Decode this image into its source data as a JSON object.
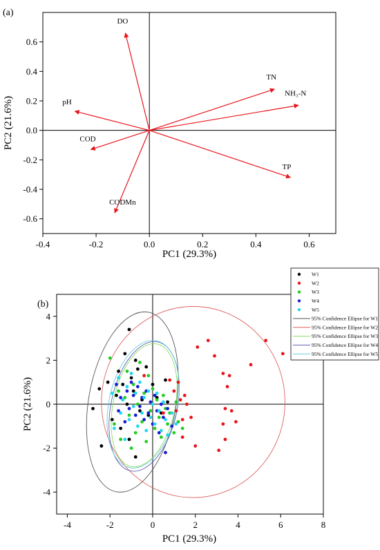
{
  "colors": {
    "arrow": "#e8141b",
    "w1": "#000000",
    "w2": "#e8141b",
    "w3": "#22cc22",
    "w4": "#1a1ad6",
    "w5": "#22d6ee",
    "ellipse_w1": "#555555",
    "ellipse_w2": "#e06060",
    "ellipse_w3": "#88dd66",
    "ellipse_w4": "#6060b0",
    "ellipse_w5": "#66ccdd"
  },
  "chart_data": [
    {
      "type": "scatter",
      "subtype": "biplot-loadings",
      "panel_label": "(a)",
      "xlabel": "PC1 (29.3%)",
      "ylabel": "PC2 (21.6%)",
      "xlim": [
        -0.4,
        0.7
      ],
      "ylim": [
        -0.7,
        0.8
      ],
      "xticks": [
        "-0.4",
        "-0.2",
        "0.0",
        "0.2",
        "0.4",
        "0.6"
      ],
      "yticks": [
        "-0.6",
        "-0.4",
        "-0.2",
        "0.0",
        "0.2",
        "0.4",
        "0.6"
      ],
      "xtick_values": [
        -0.4,
        -0.2,
        0.0,
        0.2,
        0.4,
        0.6
      ],
      "ytick_values": [
        -0.6,
        -0.4,
        -0.2,
        0.0,
        0.2,
        0.4,
        0.6
      ],
      "vectors": [
        {
          "label": "DO",
          "x": -0.09,
          "y": 0.66
        },
        {
          "label": "pH",
          "x": -0.28,
          "y": 0.13
        },
        {
          "label": "COD",
          "x": -0.22,
          "y": -0.13
        },
        {
          "label": "CODMn",
          "x": -0.13,
          "y": -0.56
        },
        {
          "label": "TN",
          "x": 0.47,
          "y": 0.28
        },
        {
          "label": "NH₃-N",
          "x": 0.56,
          "y": 0.17
        },
        {
          "label": "TP",
          "x": 0.53,
          "y": -0.32
        }
      ]
    },
    {
      "type": "scatter",
      "panel_label": "(b)",
      "xlabel": "PC1 (29.3%)",
      "ylabel": "PC2 (21.6%)",
      "xlim": [
        -4.5,
        8
      ],
      "ylim": [
        -5,
        5
      ],
      "xticks": [
        "-4",
        "-2",
        "0",
        "2",
        "4",
        "6",
        "8"
      ],
      "yticks": [
        "-4",
        "-2",
        "0",
        "2",
        "4"
      ],
      "xtick_values": [
        -4,
        -2,
        0,
        2,
        4,
        6,
        8
      ],
      "ytick_values": [
        -4,
        -2,
        0,
        2,
        4
      ],
      "legend_position": "top-right",
      "series": [
        {
          "name": "W1",
          "color_key": "w1",
          "points": [
            [
              -2.8,
              -0.2
            ],
            [
              -2.5,
              0.7
            ],
            [
              -2.4,
              -1.9
            ],
            [
              -2.1,
              1.0
            ],
            [
              -1.9,
              -0.7
            ],
            [
              -1.7,
              0.4
            ],
            [
              -1.6,
              1.5
            ],
            [
              -1.5,
              -1.1
            ],
            [
              -1.4,
              0.9
            ],
            [
              -1.3,
              2.3
            ],
            [
              -1.2,
              0.0
            ],
            [
              -1.1,
              3.4
            ],
            [
              -1.1,
              -1.6
            ],
            [
              -1.0,
              1.2
            ],
            [
              -0.9,
              0.6
            ],
            [
              -0.8,
              -2.4
            ],
            [
              -0.8,
              2.0
            ],
            [
              -0.7,
              1.6
            ],
            [
              -0.6,
              -0.3
            ],
            [
              -0.5,
              0.2
            ],
            [
              -0.3,
              1.7
            ],
            [
              -0.2,
              -0.5
            ],
            [
              0.0,
              0.9
            ],
            [
              0.2,
              0.3
            ],
            [
              0.4,
              -0.4
            ],
            [
              0.6,
              1.1
            ],
            [
              0.7,
              0.1
            ]
          ]
        },
        {
          "name": "W2",
          "color_key": "w2",
          "points": [
            [
              -0.4,
              1.3
            ],
            [
              0.5,
              -0.4
            ],
            [
              0.8,
              1.1
            ],
            [
              1.0,
              0.6
            ],
            [
              1.1,
              -0.3
            ],
            [
              1.2,
              1.0
            ],
            [
              1.3,
              0.2
            ],
            [
              1.4,
              -0.7
            ],
            [
              1.4,
              -1.5
            ],
            [
              1.5,
              0.4
            ],
            [
              1.6,
              0.0
            ],
            [
              1.8,
              -0.6
            ],
            [
              2.0,
              -1.9
            ],
            [
              2.1,
              2.6
            ],
            [
              2.6,
              2.9
            ],
            [
              2.9,
              2.2
            ],
            [
              3.1,
              -2.1
            ],
            [
              3.3,
              1.4
            ],
            [
              3.3,
              -0.9
            ],
            [
              3.4,
              -0.2
            ],
            [
              3.4,
              -1.6
            ],
            [
              3.5,
              0.8
            ],
            [
              3.6,
              1.3
            ],
            [
              3.7,
              -0.3
            ],
            [
              3.9,
              -0.8
            ],
            [
              4.6,
              1.8
            ],
            [
              5.3,
              2.9
            ],
            [
              6.1,
              2.3
            ]
          ]
        },
        {
          "name": "W3",
          "color_key": "w3",
          "points": [
            [
              -2.0,
              2.1
            ],
            [
              -1.8,
              -0.9
            ],
            [
              -1.6,
              0.6
            ],
            [
              -1.5,
              -1.6
            ],
            [
              -1.3,
              0.3
            ],
            [
              -1.2,
              1.5
            ],
            [
              -1.1,
              -0.5
            ],
            [
              -1.0,
              -2.0
            ],
            [
              -0.9,
              0.9
            ],
            [
              -0.8,
              -1.3
            ],
            [
              -0.7,
              0.0
            ],
            [
              -0.6,
              1.9
            ],
            [
              -0.5,
              -0.8
            ],
            [
              -0.4,
              0.5
            ],
            [
              -0.3,
              -1.7
            ],
            [
              -0.2,
              1.3
            ],
            [
              -0.1,
              -0.3
            ],
            [
              0.0,
              0.7
            ],
            [
              0.1,
              -1.1
            ],
            [
              0.2,
              0.2
            ],
            [
              0.3,
              -0.6
            ],
            [
              0.4,
              -1.5
            ],
            [
              0.5,
              0.4
            ],
            [
              0.6,
              -0.2
            ],
            [
              0.7,
              -0.9
            ],
            [
              0.8,
              -0.4
            ],
            [
              1.0,
              -1.3
            ],
            [
              1.1,
              0.1
            ],
            [
              1.2,
              -0.8
            ],
            [
              1.4,
              -1.1
            ]
          ]
        },
        {
          "name": "W4",
          "color_key": "w4",
          "points": [
            [
              -1.7,
              0.9
            ],
            [
              -1.6,
              -0.3
            ],
            [
              -1.5,
              0.3
            ],
            [
              -1.3,
              -0.8
            ],
            [
              -1.2,
              0.6
            ],
            [
              -1.1,
              -0.2
            ],
            [
              -1.0,
              1.0
            ],
            [
              -0.9,
              0.4
            ],
            [
              -0.8,
              -0.5
            ],
            [
              -0.7,
              0.8
            ],
            [
              -0.6,
              -0.1
            ],
            [
              -0.5,
              0.3
            ],
            [
              -0.4,
              -0.7
            ],
            [
              -0.3,
              0.6
            ],
            [
              -0.2,
              -0.4
            ],
            [
              -0.1,
              0.1
            ],
            [
              0.0,
              -0.9
            ],
            [
              0.1,
              0.4
            ],
            [
              0.2,
              -0.3
            ],
            [
              0.3,
              -1.3
            ],
            [
              0.4,
              0.0
            ],
            [
              0.5,
              -0.6
            ],
            [
              0.6,
              -2.2
            ],
            [
              0.7,
              -0.2
            ],
            [
              0.9,
              -1.0
            ]
          ]
        },
        {
          "name": "W5",
          "color_key": "w5",
          "points": [
            [
              -1.9,
              0.5
            ],
            [
              -1.8,
              -1.1
            ],
            [
              -1.6,
              1.2
            ],
            [
              -1.5,
              -0.4
            ],
            [
              -1.4,
              0.2
            ],
            [
              -1.3,
              -1.6
            ],
            [
              -1.2,
              0.8
            ],
            [
              -1.1,
              -0.7
            ],
            [
              -1.0,
              1.4
            ],
            [
              -0.9,
              -0.1
            ],
            [
              -0.8,
              0.5
            ],
            [
              -0.7,
              -1.0
            ],
            [
              -0.6,
              1.0
            ],
            [
              -0.5,
              -0.4
            ],
            [
              -0.4,
              0.3
            ],
            [
              -0.3,
              -1.2
            ],
            [
              -0.2,
              0.6
            ],
            [
              -0.1,
              -0.6
            ],
            [
              0.0,
              0.0
            ],
            [
              0.1,
              -0.9
            ],
            [
              0.2,
              0.5
            ],
            [
              0.3,
              -0.3
            ],
            [
              0.4,
              -1.2
            ],
            [
              0.5,
              0.1
            ],
            [
              0.6,
              -0.7
            ],
            [
              0.7,
              -1.4
            ],
            [
              0.9,
              -0.4
            ],
            [
              1.1,
              -0.9
            ]
          ]
        }
      ],
      "ellipses": [
        {
          "name": "95% Confidence Ellipse for W1",
          "color_key": "ellipse_w1",
          "cx": -0.95,
          "cy": 0.1,
          "rx": 2.05,
          "ry": 4.15,
          "angle": 10
        },
        {
          "name": "95% Confidence Ellipse for W2",
          "color_key": "ellipse_w2",
          "cx": 1.9,
          "cy": 0.1,
          "rx": 4.3,
          "ry": 4.35,
          "angle": 0
        },
        {
          "name": "95% Confidence Ellipse for W3",
          "color_key": "ellipse_w3",
          "cx": -0.4,
          "cy": -0.05,
          "rx": 1.45,
          "ry": 2.85,
          "angle": 12
        },
        {
          "name": "95% Confidence Ellipse for W4",
          "color_key": "ellipse_w4",
          "cx": -0.4,
          "cy": -0.1,
          "rx": 1.55,
          "ry": 3.0,
          "angle": 12
        },
        {
          "name": "95% Confidence Ellipse for W5",
          "color_key": "ellipse_w5",
          "cx": -0.45,
          "cy": 0.0,
          "rx": 1.6,
          "ry": 2.95,
          "angle": 12
        }
      ]
    }
  ]
}
